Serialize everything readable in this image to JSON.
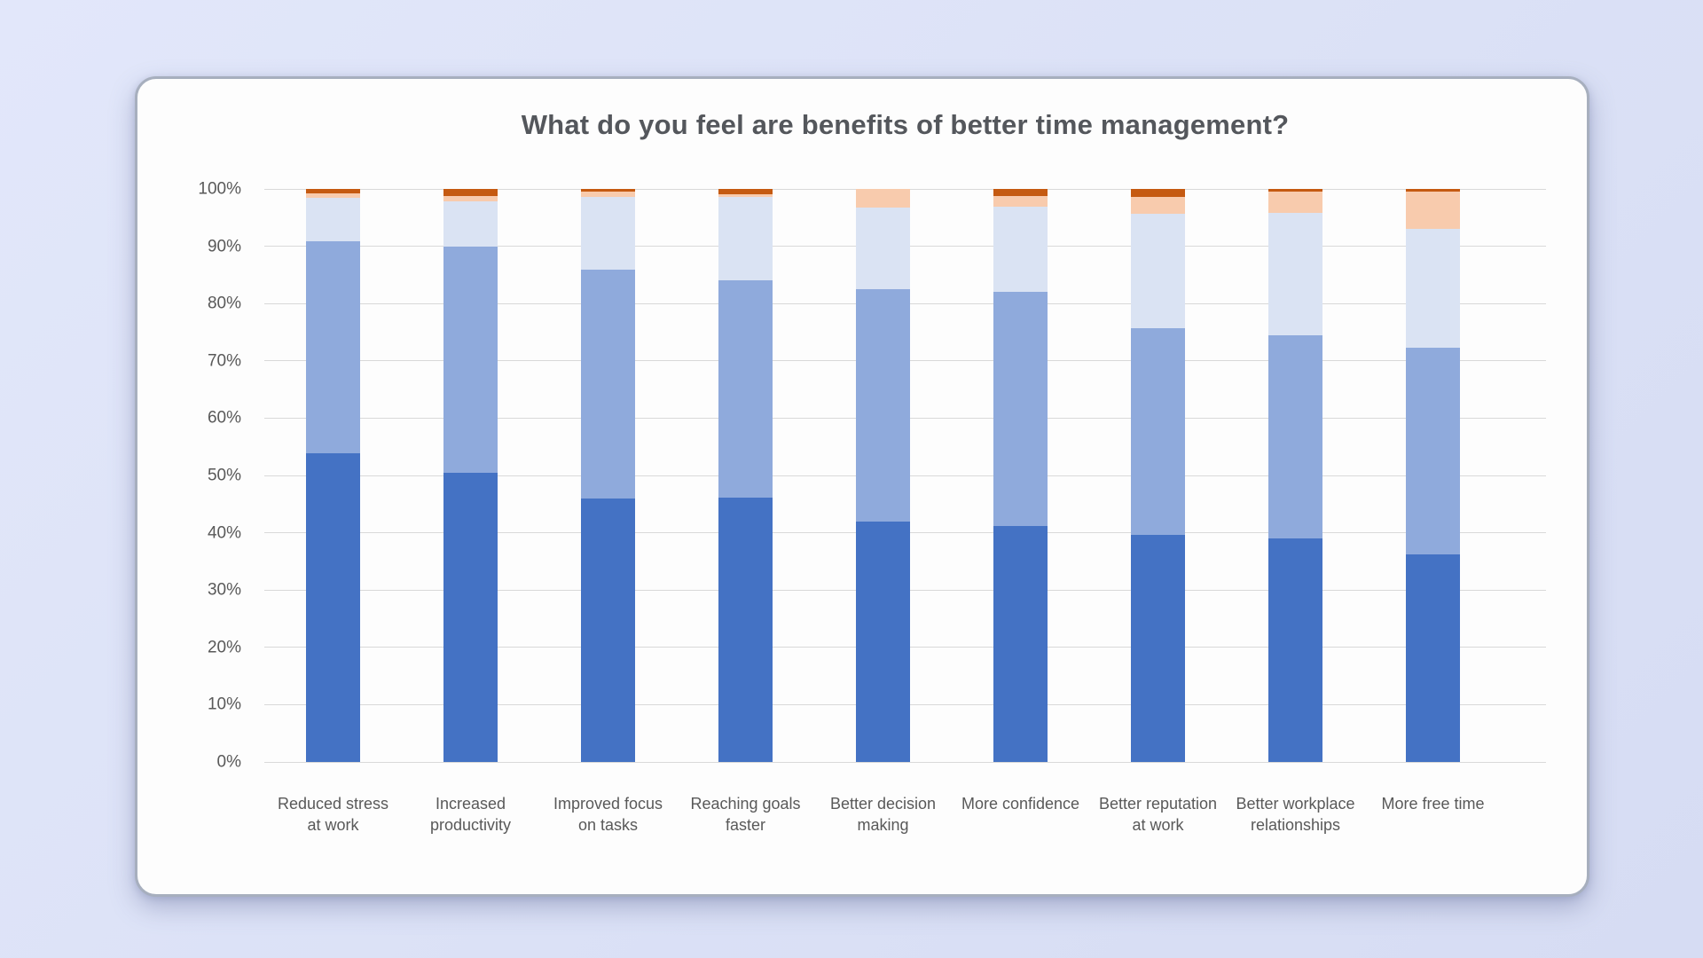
{
  "page": {
    "background_color": "#dbe1f6"
  },
  "card": {
    "background_color": "#fdfdfd",
    "border_color": "#a7afbe"
  },
  "chart_data": {
    "type": "bar",
    "subtype": "100%-stacked-column",
    "title": "What do you feel are benefits of better time management?",
    "title_color": "#54575c",
    "legend": "none",
    "grid": "horizontal",
    "gridline_color": "#d9d9d9",
    "axis_label_color": "#595959",
    "categories": [
      "Reduced stress at work",
      "Increased productivity",
      "Improved focus on tasks",
      "Reaching goals faster",
      "Better decision making",
      "More confidence",
      "Better reputation at work",
      "Better workplace relationships",
      "More free time"
    ],
    "series": [
      {
        "name": "dark-blue",
        "color": "#4472C4",
        "values": [
          53.8,
          50.4,
          45.9,
          46.1,
          41.9,
          41.2,
          39.7,
          39.0,
          36.2
        ]
      },
      {
        "name": "medium-blue",
        "color": "#8FAADC",
        "values": [
          37.0,
          39.5,
          40.0,
          38.0,
          40.6,
          40.8,
          36.0,
          35.4,
          36.1
        ]
      },
      {
        "name": "pale-blue",
        "color": "#DAE3F3",
        "values": [
          7.7,
          7.9,
          12.7,
          14.5,
          14.3,
          14.9,
          19.9,
          21.4,
          20.8
        ]
      },
      {
        "name": "light-orange",
        "color": "#F8CBAD",
        "values": [
          0.8,
          1.0,
          1.0,
          0.5,
          3.2,
          1.8,
          3.0,
          3.7,
          6.5
        ]
      },
      {
        "name": "dark-orange",
        "color": "#C55A11",
        "values": [
          0.7,
          1.2,
          0.4,
          0.9,
          0.0,
          1.3,
          1.4,
          0.5,
          0.4
        ]
      }
    ],
    "stack_order": "bottom-to-top",
    "y_axis": {
      "min": 0,
      "max": 100,
      "ticks": [
        "0%",
        "10%",
        "20%",
        "30%",
        "40%",
        "50%",
        "60%",
        "70%",
        "80%",
        "90%",
        "100%"
      ]
    }
  }
}
